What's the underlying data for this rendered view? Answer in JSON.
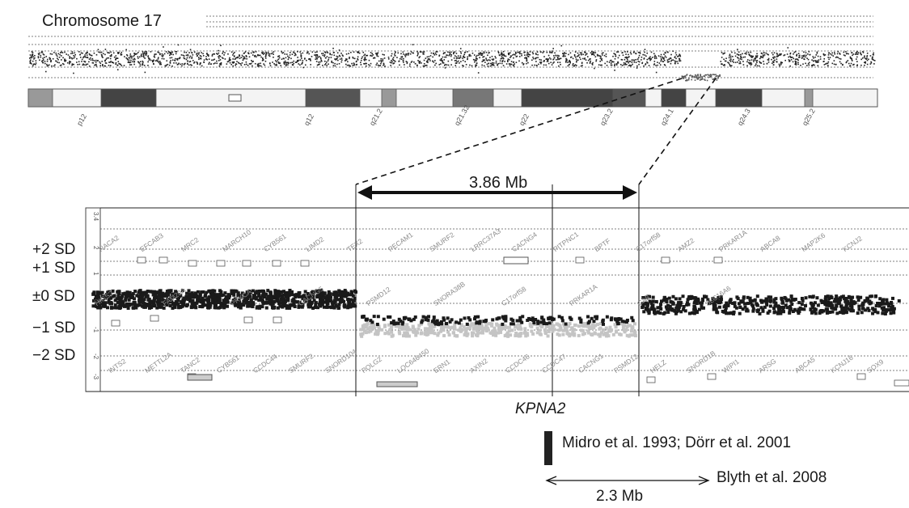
{
  "top_panel": {
    "title": "Chromosome 17",
    "bands": [
      "p12",
      "q12",
      "q21.2",
      "q21.32",
      "q22",
      "q23.2",
      "q24.1",
      "q24.3",
      "q25.2"
    ]
  },
  "zoom_panel": {
    "region_size": "3.86 Mb",
    "sd_labels": [
      "+2 SD",
      "+1 SD",
      "±0 SD",
      "−1 SD",
      "−2 SD"
    ],
    "y_ticks": [
      "3.4",
      "2",
      "1",
      "0",
      "-1",
      "-2",
      "-3"
    ],
    "genes_top": [
      "NACA2",
      "EFCAB3",
      "MRC2",
      "MARCH10",
      "CYB561",
      "LIMD2",
      "TEX2",
      "PECAM1",
      "SMURF2",
      "LRRC37A3",
      "CACNG4",
      "PITPNC1",
      "BPTF",
      "C17orf58",
      "AMZ2",
      "PRKAR1A",
      "ABCA8",
      "MAP2K6",
      "KCNJ2"
    ],
    "genes_mid": [
      "HIGS2",
      "FAM20A",
      "PRKCA",
      "CACNG5",
      "PSMD12",
      "SNORA38B",
      "C17orf58",
      "PRKAR1A",
      "CA8",
      "SLC16A6"
    ],
    "genes_bottom": [
      "INTS2",
      "METTL2A",
      "TANC2",
      "CYB561",
      "CCDC44",
      "SMURF2",
      "SNORD104",
      "POLG2",
      "LOC646450",
      "ERN1",
      "AXIN2",
      "CCDC46",
      "CCDC47",
      "CACNG1",
      "PSMD12",
      "HELZ",
      "SNORD1B",
      "WIPI1",
      "ARSG",
      "ABCA5",
      "KCNJ16",
      "SOX9"
    ]
  },
  "annotations": {
    "gene": "KPNA2",
    "ref1": "Midro et al. 1993; Dörr et al. 2001",
    "ref2": "Blyth et al. 2008",
    "ref2_size": "2.3 Mb"
  }
}
